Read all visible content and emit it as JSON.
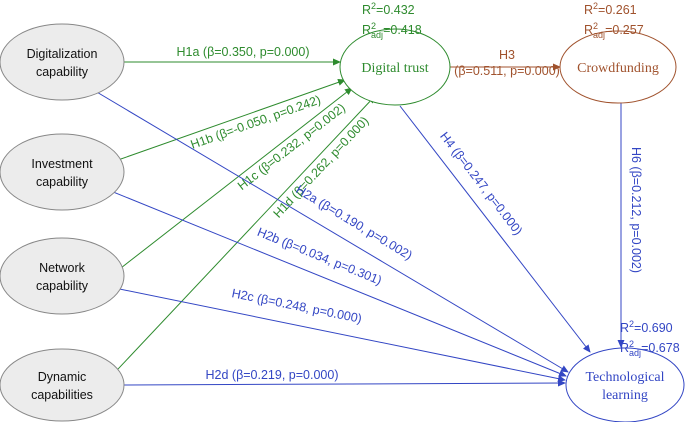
{
  "nodes": [
    {
      "id": "digitalization",
      "lines": [
        "Digitalization",
        "capability"
      ]
    },
    {
      "id": "investment",
      "lines": [
        "Investment",
        "capability"
      ]
    },
    {
      "id": "network",
      "lines": [
        "Network",
        "capability"
      ]
    },
    {
      "id": "dynamic",
      "lines": [
        "Dynamic",
        "capabilities"
      ]
    },
    {
      "id": "trust",
      "lines": [
        "Digital trust"
      ]
    },
    {
      "id": "crowdfunding",
      "lines": [
        "Crowdfunding"
      ]
    },
    {
      "id": "learning",
      "lines": [
        "Technological",
        "learning"
      ]
    }
  ],
  "edges": [
    {
      "lines": [
        "H1a (β=0.350, p=0.000)"
      ]
    },
    {
      "lines": [
        "H1b (β=-0.050, p=0.242)"
      ]
    },
    {
      "lines": [
        "H1c (β=0.232, p=0.002)"
      ]
    },
    {
      "lines": [
        "H1d (β=0.262, p=0.000)"
      ]
    },
    {
      "lines": [
        "H2a (β=0.190, p=0.002)"
      ]
    },
    {
      "lines": [
        "H2b (β=0.034, p=0.301)"
      ]
    },
    {
      "lines": [
        "H2c (β=0.248, p=0.000)"
      ]
    },
    {
      "lines": [
        "H2d (β=0.219, p=0.000)"
      ]
    },
    {
      "lines": [
        "H3",
        "(β=0.511, p=0.000)"
      ]
    },
    {
      "lines": [
        "H4 (β=0.247, p=0.000)"
      ]
    },
    {
      "lines": [
        "H6 (β=0.212, p=0.002)"
      ]
    }
  ],
  "r_squared": [
    {
      "r2": {
        "base": "R",
        "sup": "2",
        "eq": "=0.432"
      },
      "r2adj": {
        "base": "R",
        "sup": "2",
        "sub": "adj",
        "eq": "=0.418"
      }
    },
    {
      "r2": {
        "base": "R",
        "sup": "2",
        "eq": "=0.261"
      },
      "r2adj": {
        "base": "R",
        "sup": "2",
        "sub": "adj",
        "eq": "=0.257"
      }
    },
    {
      "r2": {
        "base": "R",
        "sup": "2",
        "eq": "=0.690"
      },
      "r2adj": {
        "base": "R",
        "sup": "2",
        "sub": "adj",
        "eq": "=0.678"
      }
    }
  ]
}
